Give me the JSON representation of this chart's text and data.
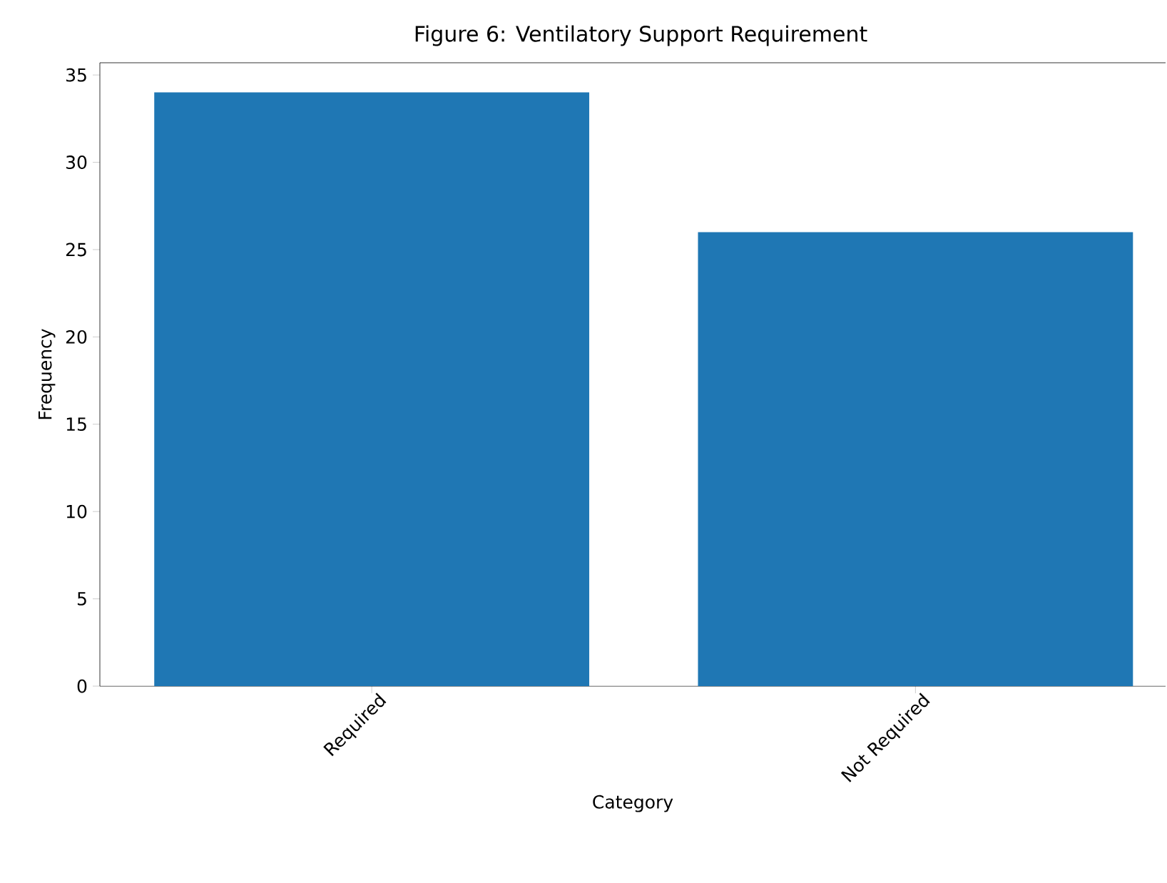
{
  "chart_data": {
    "type": "bar",
    "title": "Figure 6: Ventilatory Support Requirement",
    "xlabel": "Category",
    "ylabel": "Frequency",
    "categories": [
      "Required",
      "Not Required"
    ],
    "values": [
      34,
      26
    ],
    "color": "#1f77b4",
    "ylim": [
      0,
      35.7
    ],
    "yticks": [
      0,
      5,
      10,
      15,
      20,
      25,
      30,
      35
    ]
  }
}
